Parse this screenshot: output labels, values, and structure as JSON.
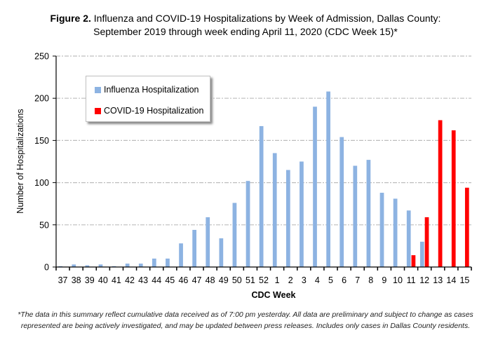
{
  "title": {
    "bold": "Figure 2.",
    "line1": "Influenza and COVID-19 Hospitalizations by Week of Admission, Dallas County:",
    "line2": "September 2019 through week ending April 11, 2020 (CDC Week 15)*"
  },
  "footnote": {
    "line1": "*The data in this summary reflect cumulative data received as of 7:00 pm yesterday.  All data are preliminary and subject to change as cases",
    "line2": "represented are being actively investigated, and may be updated between press releases. Includes only cases in Dallas County residents."
  },
  "chart_data": {
    "type": "bar",
    "title": "Figure 2. Influenza and COVID-19 Hospitalizations by Week of Admission, Dallas County: September 2019 through week ending April 11, 2020 (CDC Week 15)*",
    "xlabel": "CDC Week",
    "ylabel": "Number of Hospitalizations",
    "ylim": [
      0,
      250
    ],
    "yticks": [
      0,
      50,
      100,
      150,
      200,
      250
    ],
    "grid": true,
    "legend_position": "top-left",
    "categories": [
      "37",
      "38",
      "39",
      "40",
      "41",
      "42",
      "43",
      "44",
      "45",
      "46",
      "47",
      "48",
      "49",
      "50",
      "51",
      "52",
      "1",
      "2",
      "3",
      "4",
      "5",
      "6",
      "7",
      "8",
      "9",
      "10",
      "11",
      "12",
      "13",
      "14",
      "15"
    ],
    "series": [
      {
        "name": "Influenza Hospitalization",
        "color": "#8DB3E2",
        "values": [
          1,
          3,
          2,
          3,
          1,
          4,
          4,
          10,
          10,
          28,
          44,
          59,
          34,
          76,
          102,
          167,
          135,
          115,
          125,
          190,
          208,
          154,
          120,
          127,
          88,
          81,
          67,
          30,
          0,
          0,
          0
        ]
      },
      {
        "name": "COVID-19 Hospitalization",
        "color": "#FF0000",
        "values": [
          0,
          0,
          0,
          0,
          0,
          0,
          0,
          0,
          0,
          0,
          0,
          0,
          0,
          0,
          0,
          0,
          0,
          0,
          0,
          0,
          0,
          0,
          0,
          0,
          0,
          0,
          14,
          59,
          174,
          162,
          94
        ]
      }
    ]
  }
}
